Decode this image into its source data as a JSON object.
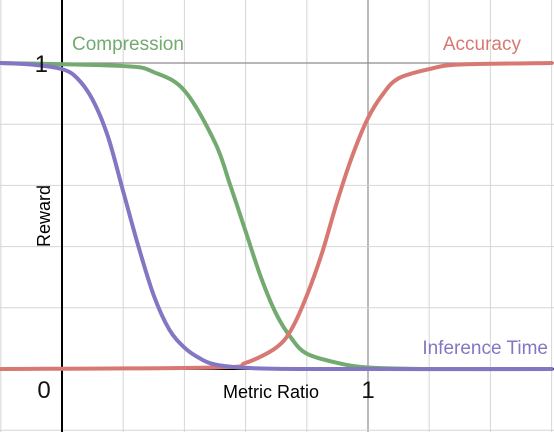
{
  "chart_data": {
    "type": "line",
    "title": "",
    "xlabel": "Metric Ratio",
    "ylabel": "Reward",
    "xlim": [
      -0.2,
      1.6
    ],
    "ylim": [
      -0.2,
      1.08
    ],
    "x_ticks": [
      {
        "value": 0,
        "label": "0"
      },
      {
        "value": 1,
        "label": "1"
      }
    ],
    "y_ticks": [
      {
        "value": 1,
        "label": "1"
      }
    ],
    "grid": true,
    "series": [
      {
        "name": "Compression",
        "color": "#73aa70",
        "x": [
          -0.2,
          0.2,
          0.3,
          0.4,
          0.5,
          0.55,
          0.6,
          0.65,
          0.7,
          0.75,
          0.8,
          0.9,
          1.0,
          1.2,
          1.6
        ],
        "y": [
          1.0,
          0.99,
          0.97,
          0.91,
          0.74,
          0.6,
          0.45,
          0.3,
          0.18,
          0.1,
          0.05,
          0.02,
          0.005,
          0.0,
          0.0
        ]
      },
      {
        "name": "Accuracy",
        "color": "#d87872",
        "x": [
          -0.2,
          0.5,
          0.6,
          0.7,
          0.75,
          0.8,
          0.85,
          0.9,
          0.95,
          1.0,
          1.05,
          1.1,
          1.2,
          1.3,
          1.6
        ],
        "y": [
          0.0,
          0.005,
          0.02,
          0.07,
          0.13,
          0.24,
          0.38,
          0.55,
          0.7,
          0.82,
          0.9,
          0.95,
          0.98,
          0.995,
          1.0
        ]
      },
      {
        "name": "Inference Time",
        "color": "#8376c2",
        "x": [
          -0.2,
          -0.1,
          0.0,
          0.05,
          0.1,
          0.15,
          0.2,
          0.25,
          0.3,
          0.35,
          0.4,
          0.45,
          0.5,
          0.6,
          0.8,
          1.6
        ],
        "y": [
          1.0,
          0.995,
          0.98,
          0.95,
          0.88,
          0.76,
          0.58,
          0.4,
          0.24,
          0.13,
          0.07,
          0.035,
          0.015,
          0.004,
          0.0,
          0.0
        ]
      }
    ]
  }
}
